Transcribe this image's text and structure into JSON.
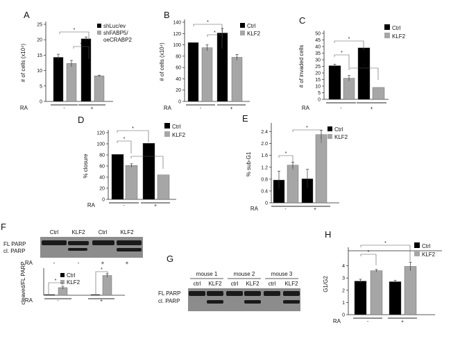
{
  "colors": {
    "ctrl": "#000000",
    "klf2": "#a6a6a6",
    "blot_dark": "#1a1a1a",
    "blot_bg": "#8c8c8c"
  },
  "signs": {
    "minus": "-",
    "plus": "+",
    "star": "*"
  },
  "chart_data": [
    {
      "id": "A",
      "type": "bar",
      "label": "A",
      "ylabel": "# of cells (x10⁴)",
      "ylim": [
        0,
        25
      ],
      "yticks": [
        0,
        5,
        10,
        15,
        20,
        25
      ],
      "xlabel": "RA",
      "categories": [
        "-",
        "+"
      ],
      "series": [
        {
          "name": "shLuc/ev",
          "color": "#000000",
          "values": [
            14.3,
            20.3
          ],
          "errors": [
            1.0,
            0.6
          ]
        },
        {
          "name": "shFABP5/\noeCRABP2",
          "color": "#a6a6a6",
          "values": [
            12.3,
            8.3
          ],
          "errors": [
            1.0,
            0.2
          ]
        }
      ],
      "legend": [
        "shLuc/ev",
        "shFABP5/",
        "oeCRABP2"
      ],
      "significance": [
        "*",
        "*"
      ]
    },
    {
      "id": "B",
      "type": "bar",
      "label": "B",
      "ylabel": "# of cells (x10⁴)",
      "ylim": [
        0,
        140
      ],
      "yticks": [
        0,
        20,
        40,
        60,
        80,
        100,
        120,
        140
      ],
      "xlabel": "RA",
      "categories": [
        "-",
        "+"
      ],
      "series": [
        {
          "name": "Ctrl",
          "color": "#000000",
          "values": [
            104,
            121
          ],
          "errors": [
            0,
            8
          ]
        },
        {
          "name": "KLF2",
          "color": "#a6a6a6",
          "values": [
            95,
            78
          ],
          "errors": [
            5,
            5
          ]
        }
      ],
      "legend": [
        "Ctrl",
        "KLF2"
      ],
      "significance": [
        "*",
        "*"
      ]
    },
    {
      "id": "C",
      "type": "bar",
      "label": "C",
      "ylabel": "# of invaded cells",
      "ylim": [
        0,
        50
      ],
      "yticks": [
        0,
        5,
        10,
        15,
        20,
        25,
        30,
        35,
        40,
        45,
        50
      ],
      "xlabel": "RA",
      "categories": [
        "-",
        "+"
      ],
      "series": [
        {
          "name": "Ctrl",
          "color": "#000000",
          "values": [
            25.5,
            39
          ],
          "errors": [
            1,
            0
          ]
        },
        {
          "name": "KLF2",
          "color": "#a6a6a6",
          "values": [
            16,
            9
          ],
          "errors": [
            2,
            0
          ]
        }
      ],
      "legend": [
        "Ctrl",
        "KLF2"
      ],
      "significance": [
        "*",
        "*",
        "*"
      ]
    },
    {
      "id": "D",
      "type": "bar",
      "label": "D",
      "ylabel": "% closure",
      "ylim": [
        0,
        120
      ],
      "yticks": [
        0,
        20,
        40,
        60,
        80,
        100,
        120
      ],
      "xlabel": "RA",
      "categories": [
        "-",
        "+"
      ],
      "series": [
        {
          "name": "Ctrl",
          "color": "#000000",
          "values": [
            81,
            101
          ],
          "errors": [
            0,
            0
          ]
        },
        {
          "name": "KLF2",
          "color": "#a6a6a6",
          "values": [
            61,
            44
          ],
          "errors": [
            3,
            0
          ]
        }
      ],
      "legend": [
        "Ctrl",
        "KLF2"
      ],
      "significance": [
        "*",
        "*",
        "*"
      ]
    },
    {
      "id": "E",
      "type": "bar",
      "label": "E",
      "ylabel": "% sub-G1",
      "ylim": [
        0,
        2.6
      ],
      "yticks": [
        "0",
        "0.4",
        "0.8",
        "1.2",
        "1.6",
        "2.0",
        "2.4"
      ],
      "xlabel": "RA",
      "categories": [
        "-",
        "+"
      ],
      "series": [
        {
          "name": "Ctrl",
          "color": "#000000",
          "values": [
            0.77,
            0.81
          ],
          "errors": [
            0.3,
            0.32
          ]
        },
        {
          "name": "KLF2",
          "color": "#a6a6a6",
          "values": [
            1.27,
            2.3
          ],
          "errors": [
            0.1,
            0.15
          ]
        }
      ],
      "legend": [
        "Ctrl",
        "KLF2"
      ],
      "significance": [
        "*",
        "*"
      ]
    },
    {
      "id": "F",
      "type": "bar",
      "label": "",
      "ylabel": "cleaved/FL PARP",
      "ylim": [
        0,
        0.7
      ],
      "yticks": [],
      "xlabel": "RA",
      "categories": [
        "-",
        "+"
      ],
      "series": [
        {
          "name": "Ctrl",
          "color": "#000000",
          "values": [
            0.0,
            0.0
          ],
          "errors": [
            0,
            0
          ]
        },
        {
          "name": "KLF2",
          "color": "#a6a6a6",
          "values": [
            0.22,
            0.57
          ],
          "errors": [
            0.04,
            0.05
          ]
        }
      ],
      "legend": [
        "Ctrl",
        "KLF2"
      ],
      "significance": [
        "*",
        "*"
      ]
    },
    {
      "id": "H",
      "type": "bar",
      "label": "H",
      "ylabel": "G1/G2",
      "ylim": [
        0,
        5
      ],
      "yticks": [
        0,
        1,
        2,
        3,
        4
      ],
      "xlabel": "RA",
      "categories": [
        "-",
        "+"
      ],
      "series": [
        {
          "name": "Ctrl",
          "color": "#000000",
          "values": [
            2.75,
            2.7
          ],
          "errors": [
            0.15,
            0.1
          ]
        },
        {
          "name": "KLF2",
          "color": "#a6a6a6",
          "values": [
            3.6,
            3.95
          ],
          "errors": [
            0.1,
            0.35
          ]
        }
      ],
      "legend": [
        "Ctrl",
        "KLF2"
      ],
      "significance": [
        "*",
        "*"
      ]
    }
  ],
  "blotF": {
    "label": "F",
    "lanes": [
      "Ctrl",
      "KLF2",
      "Ctrl",
      "KLF2"
    ],
    "rows": [
      "FL PARP",
      "cl. PARP"
    ],
    "ra_label": "RA",
    "ra": [
      "-",
      "-",
      "+",
      "+"
    ]
  },
  "blotG": {
    "label": "G",
    "mice": [
      "mouse 1",
      "mouse 2",
      "mouse 3"
    ],
    "lanes": [
      "ctrl",
      "KLF2",
      "ctrl",
      "KLF2",
      "ctrl",
      "KLF2"
    ],
    "rows": [
      "FL PARP",
      "cl. PARP"
    ]
  }
}
